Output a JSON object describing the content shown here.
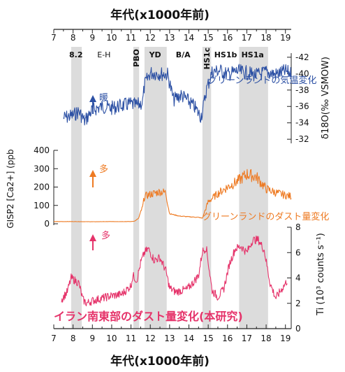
{
  "chart_data": {
    "type": "line",
    "title_top": "年代(x1000年前)",
    "title_bottom": "年代(x1000年前)",
    "x_ticks": [
      "7",
      "8",
      "9",
      "10",
      "11",
      "12",
      "13",
      "14",
      "15",
      "16",
      "17",
      "18",
      "19"
    ],
    "xlim": [
      7,
      19.3
    ],
    "periods": [
      {
        "label": "8.2",
        "start": 7.9,
        "end": 8.45
      },
      {
        "label": "E-H",
        "start": null,
        "end": null
      },
      {
        "label": "PBO",
        "start": 11.12,
        "end": 11.42
      },
      {
        "label": "YD",
        "start": 11.7,
        "end": 12.85
      },
      {
        "label": "B/A",
        "start": null,
        "end": null
      },
      {
        "label": "HS1c",
        "start": 14.7,
        "end": 15.15
      },
      {
        "label": "HS1b",
        "start": null,
        "end": null
      },
      {
        "label": "HS1a",
        "start": 16.6,
        "end": 18.1
      }
    ],
    "series": [
      {
        "name": "グリーンランドの気温変化",
        "arrow_label": "暖",
        "color": "#2c50a4",
        "axis_label": "δ18O(‰ VSMOW)",
        "axis_ticks": [
          "-32",
          "-34",
          "-36",
          "-38",
          "-40",
          "-42"
        ],
        "ylim": [
          -42.5,
          -31.5
        ],
        "inverted": true,
        "x": [
          7.5,
          8.0,
          8.3,
          8.6,
          9.0,
          9.5,
          10.0,
          10.5,
          11.0,
          11.3,
          11.6,
          11.7,
          12.0,
          12.5,
          12.9,
          13.2,
          13.6,
          14.0,
          14.3,
          14.6,
          14.7,
          14.9,
          15.2,
          15.6,
          16.0,
          16.5,
          17.0,
          17.5,
          18.0,
          18.5,
          19.0,
          19.3
        ],
        "y": [
          -34.6,
          -34.9,
          -35.4,
          -34.2,
          -35.6,
          -36.0,
          -35.8,
          -36.1,
          -36.3,
          -36.1,
          -36.5,
          -38.6,
          -40.1,
          -40.0,
          -39.9,
          -36.8,
          -37.4,
          -36.6,
          -35.9,
          -34.8,
          -35.3,
          -38.0,
          -40.2,
          -40.4,
          -39.9,
          -40.3,
          -40.1,
          -39.8,
          -40.2,
          -39.9,
          -40.3,
          -40.0
        ]
      },
      {
        "name": "グリーンランドのダスト量変化",
        "arrow_label": "多",
        "color": "#ee7a22",
        "axis_label": "GISP2 [Ca2+] (ppb",
        "axis_ticks": [
          "400",
          "300",
          "200",
          "100",
          "0"
        ],
        "ylim": [
          0,
          400
        ],
        "inverted": false,
        "x": [
          7.0,
          8.0,
          9.0,
          10.0,
          11.0,
          11.2,
          11.4,
          11.5,
          11.6,
          11.7,
          12.0,
          12.5,
          12.8,
          13.0,
          13.5,
          14.0,
          14.5,
          14.7,
          14.9,
          15.0,
          15.5,
          16.0,
          16.5,
          17.0,
          17.5,
          18.0,
          18.5,
          19.0,
          19.3
        ],
        "y": [
          12,
          12,
          11,
          12,
          12,
          15,
          30,
          65,
          90,
          150,
          160,
          175,
          170,
          55,
          42,
          38,
          35,
          30,
          90,
          120,
          165,
          200,
          230,
          270,
          255,
          190,
          170,
          155,
          150
        ]
      },
      {
        "name": "イラン南東部のダスト量変化(本研究)",
        "arrow_label": "多",
        "color": "#e5336a",
        "axis_label": "Ti (10³ counts s⁻¹)",
        "axis_ticks": [
          "8",
          "6",
          "4",
          "2",
          "0"
        ],
        "ylim": [
          0,
          8
        ],
        "inverted": false,
        "x": [
          7.4,
          7.7,
          7.9,
          8.1,
          8.3,
          8.5,
          8.7,
          9.0,
          9.5,
          10.0,
          10.5,
          10.8,
          11.0,
          11.1,
          11.3,
          11.5,
          11.7,
          11.9,
          12.2,
          12.5,
          12.8,
          13.0,
          13.3,
          13.6,
          13.9,
          14.2,
          14.5,
          14.7,
          14.9,
          15.2,
          15.5,
          15.8,
          16.1,
          16.4,
          16.7,
          17.0,
          17.3,
          17.6,
          17.9,
          18.2,
          18.5,
          18.8,
          19.1
        ],
        "y": [
          2.3,
          2.9,
          4.0,
          3.8,
          3.6,
          2.3,
          2.0,
          2.2,
          2.4,
          2.6,
          2.7,
          3.1,
          3.4,
          4.2,
          3.8,
          5.2,
          6.0,
          6.3,
          5.4,
          5.6,
          4.6,
          3.2,
          2.9,
          3.0,
          3.1,
          3.6,
          4.2,
          6.1,
          6.4,
          3.0,
          2.5,
          3.1,
          5.1,
          6.3,
          6.5,
          6.0,
          7.0,
          7.0,
          6.2,
          3.6,
          2.4,
          3.1,
          3.8
        ]
      }
    ]
  }
}
